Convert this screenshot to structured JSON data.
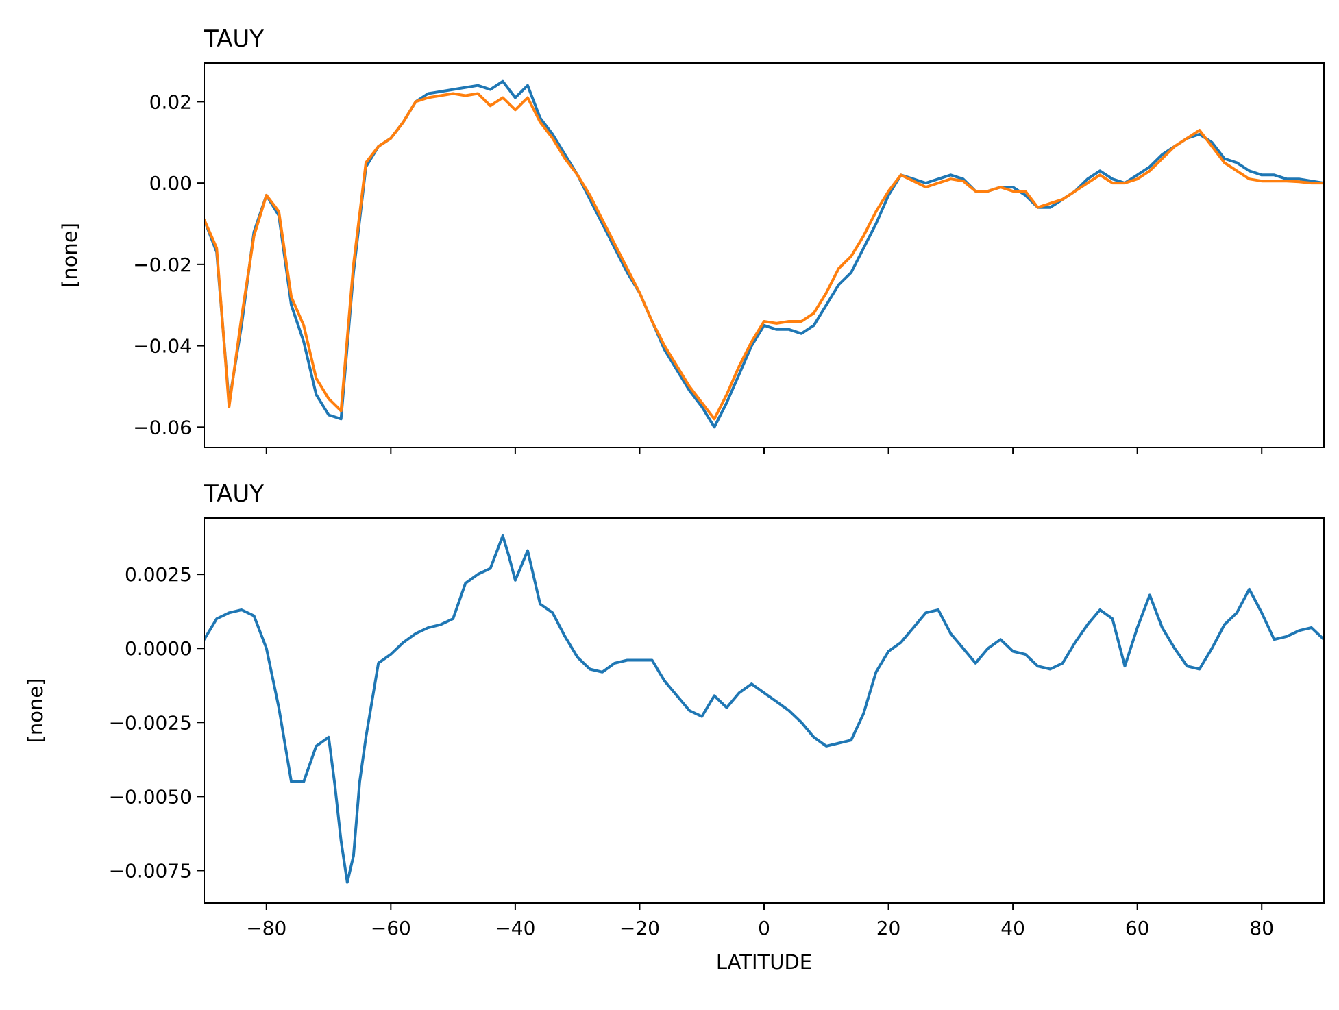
{
  "chart_data": [
    {
      "type": "line",
      "title": "TAUY",
      "xlabel": "",
      "ylabel": "[none]",
      "xlim": [
        -90,
        90
      ],
      "ylim": [
        -0.065,
        0.0295
      ],
      "x_ticks": [
        -80,
        -60,
        -40,
        -20,
        0,
        20,
        40,
        60,
        80
      ],
      "x_tick_labels_visible": false,
      "y_ticks": [
        0.02,
        0.0,
        -0.02,
        -0.04,
        -0.06
      ],
      "y_tick_labels": [
        "0.02",
        "0.00",
        "−0.02",
        "−0.04",
        "−0.06"
      ],
      "grid": false,
      "series": [
        {
          "color": "#1f77b4",
          "x": [
            -90,
            -88,
            -86,
            -84,
            -82,
            -80,
            -78,
            -76,
            -74,
            -72,
            -70,
            -68,
            -66,
            -64,
            -62,
            -60,
            -58,
            -56,
            -54,
            -52,
            -50,
            -48,
            -46,
            -44,
            -42,
            -40,
            -38,
            -36,
            -34,
            -32,
            -30,
            -28,
            -26,
            -24,
            -22,
            -20,
            -18,
            -16,
            -14,
            -12,
            -10,
            -8,
            -6,
            -4,
            -2,
            0,
            2,
            4,
            6,
            8,
            10,
            12,
            14,
            16,
            18,
            20,
            22,
            24,
            26,
            28,
            30,
            32,
            34,
            36,
            38,
            40,
            42,
            44,
            46,
            48,
            50,
            52,
            54,
            56,
            58,
            60,
            62,
            64,
            66,
            68,
            70,
            72,
            74,
            76,
            78,
            80,
            82,
            84,
            86,
            88,
            90
          ],
          "values": [
            -0.009,
            -0.017,
            -0.054,
            -0.035,
            -0.012,
            -0.003,
            -0.008,
            -0.03,
            -0.039,
            -0.052,
            -0.057,
            -0.058,
            -0.022,
            0.004,
            0.009,
            0.011,
            0.015,
            0.02,
            0.022,
            0.0225,
            0.023,
            0.0235,
            0.024,
            0.023,
            0.025,
            0.021,
            0.024,
            0.016,
            0.012,
            0.007,
            0.002,
            -0.004,
            -0.01,
            -0.016,
            -0.022,
            -0.027,
            -0.034,
            -0.041,
            -0.046,
            -0.051,
            -0.055,
            -0.06,
            -0.054,
            -0.047,
            -0.04,
            -0.035,
            -0.036,
            -0.036,
            -0.037,
            -0.035,
            -0.03,
            -0.025,
            -0.022,
            -0.016,
            -0.01,
            -0.003,
            0.002,
            0.001,
            0.0,
            0.001,
            0.002,
            0.001,
            -0.002,
            -0.002,
            -0.001,
            -0.001,
            -0.003,
            -0.006,
            -0.006,
            -0.004,
            -0.002,
            0.001,
            0.003,
            0.001,
            0.0,
            0.002,
            0.004,
            0.007,
            0.009,
            0.011,
            0.012,
            0.01,
            0.006,
            0.005,
            0.003,
            0.002,
            0.002,
            0.001,
            0.001,
            0.0005,
            0.0
          ]
        },
        {
          "color": "#ff7f0e",
          "x": [
            -90,
            -88,
            -86,
            -84,
            -82,
            -80,
            -78,
            -76,
            -74,
            -72,
            -70,
            -68,
            -66,
            -64,
            -62,
            -60,
            -58,
            -56,
            -54,
            -52,
            -50,
            -48,
            -46,
            -44,
            -42,
            -40,
            -38,
            -36,
            -34,
            -32,
            -30,
            -28,
            -26,
            -24,
            -22,
            -20,
            -18,
            -16,
            -14,
            -12,
            -10,
            -8,
            -6,
            -4,
            -2,
            0,
            2,
            4,
            6,
            8,
            10,
            12,
            14,
            16,
            18,
            20,
            22,
            24,
            26,
            28,
            30,
            32,
            34,
            36,
            38,
            40,
            42,
            44,
            46,
            48,
            50,
            52,
            54,
            56,
            58,
            60,
            62,
            64,
            66,
            68,
            70,
            72,
            74,
            76,
            78,
            80,
            82,
            84,
            86,
            88,
            90
          ],
          "values": [
            -0.009,
            -0.016,
            -0.055,
            -0.033,
            -0.013,
            -0.003,
            -0.007,
            -0.028,
            -0.035,
            -0.048,
            -0.053,
            -0.056,
            -0.02,
            0.005,
            0.009,
            0.011,
            0.015,
            0.02,
            0.021,
            0.0215,
            0.022,
            0.0215,
            0.022,
            0.019,
            0.021,
            0.018,
            0.021,
            0.015,
            0.011,
            0.006,
            0.002,
            -0.003,
            -0.009,
            -0.015,
            -0.021,
            -0.027,
            -0.034,
            -0.04,
            -0.045,
            -0.05,
            -0.054,
            -0.058,
            -0.052,
            -0.045,
            -0.039,
            -0.034,
            -0.0345,
            -0.034,
            -0.034,
            -0.032,
            -0.027,
            -0.021,
            -0.018,
            -0.013,
            -0.007,
            -0.002,
            0.002,
            0.0005,
            -0.001,
            0.0,
            0.001,
            0.0005,
            -0.002,
            -0.002,
            -0.001,
            -0.002,
            -0.002,
            -0.006,
            -0.005,
            -0.004,
            -0.002,
            0.0,
            0.002,
            0.0,
            0.0,
            0.001,
            0.003,
            0.006,
            0.009,
            0.011,
            0.013,
            0.009,
            0.005,
            0.003,
            0.001,
            0.0005,
            0.0005,
            0.0005,
            0.0003,
            0.0,
            0.0
          ]
        }
      ]
    },
    {
      "type": "line",
      "title": "TAUY",
      "xlabel": "LATITUDE",
      "ylabel": "[none]",
      "xlim": [
        -90,
        90
      ],
      "ylim": [
        -0.0086,
        0.0044
      ],
      "x_ticks": [
        -80,
        -60,
        -40,
        -20,
        0,
        20,
        40,
        60,
        80
      ],
      "x_tick_labels": [
        "−80",
        "−60",
        "−40",
        "−20",
        "0",
        "20",
        "40",
        "60",
        "80"
      ],
      "y_ticks": [
        0.0025,
        0.0,
        -0.0025,
        -0.005,
        -0.0075
      ],
      "y_tick_labels": [
        "0.0025",
        "0.0000",
        "−0.0025",
        "−0.0050",
        "−0.0075"
      ],
      "grid": false,
      "series": [
        {
          "color": "#1f77b4",
          "x": [
            -90,
            -88,
            -86,
            -84,
            -82,
            -80,
            -78,
            -76,
            -74,
            -72,
            -70,
            -69,
            -68,
            -67,
            -66,
            -65,
            -64,
            -62,
            -60,
            -58,
            -56,
            -54,
            -52,
            -50,
            -48,
            -46,
            -44,
            -42,
            -41,
            -40,
            -38,
            -36,
            -34,
            -32,
            -30,
            -28,
            -26,
            -24,
            -22,
            -20,
            -18,
            -16,
            -14,
            -12,
            -10,
            -8,
            -6,
            -4,
            -2,
            0,
            2,
            4,
            6,
            8,
            10,
            12,
            14,
            16,
            18,
            20,
            22,
            24,
            26,
            28,
            30,
            32,
            34,
            36,
            38,
            40,
            42,
            44,
            46,
            48,
            50,
            52,
            54,
            56,
            58,
            60,
            62,
            64,
            66,
            68,
            70,
            72,
            74,
            76,
            78,
            80,
            82,
            84,
            86,
            88,
            90
          ],
          "values": [
            0.0003,
            0.001,
            0.0012,
            0.0013,
            0.0011,
            0.0,
            -0.002,
            -0.0045,
            -0.0045,
            -0.0033,
            -0.003,
            -0.0046,
            -0.0065,
            -0.0079,
            -0.007,
            -0.0045,
            -0.003,
            -0.0005,
            -0.0002,
            0.0002,
            0.0005,
            0.0007,
            0.0008,
            0.001,
            0.0022,
            0.0025,
            0.0027,
            0.0038,
            0.0031,
            0.0023,
            0.0033,
            0.0015,
            0.0012,
            0.0004,
            -0.0003,
            -0.0007,
            -0.0008,
            -0.0005,
            -0.0004,
            -0.0004,
            -0.0004,
            -0.0011,
            -0.0016,
            -0.0021,
            -0.0023,
            -0.0016,
            -0.002,
            -0.0015,
            -0.0012,
            -0.0015,
            -0.0018,
            -0.0021,
            -0.0025,
            -0.003,
            -0.0033,
            -0.0032,
            -0.0031,
            -0.0022,
            -0.0008,
            -0.0001,
            0.0002,
            0.0007,
            0.0012,
            0.0013,
            0.0005,
            0.0,
            -0.0005,
            0.0,
            0.0003,
            -0.0001,
            -0.0002,
            -0.0006,
            -0.0007,
            -0.0005,
            0.0002,
            0.0008,
            0.0013,
            0.001,
            -0.0006,
            0.0007,
            0.0018,
            0.0007,
            0.0,
            -0.0006,
            -0.0007,
            0.0,
            0.0008,
            0.0012,
            0.002,
            0.0012,
            0.0003,
            0.0004,
            0.0006,
            0.0007,
            0.0003
          ]
        }
      ]
    }
  ]
}
